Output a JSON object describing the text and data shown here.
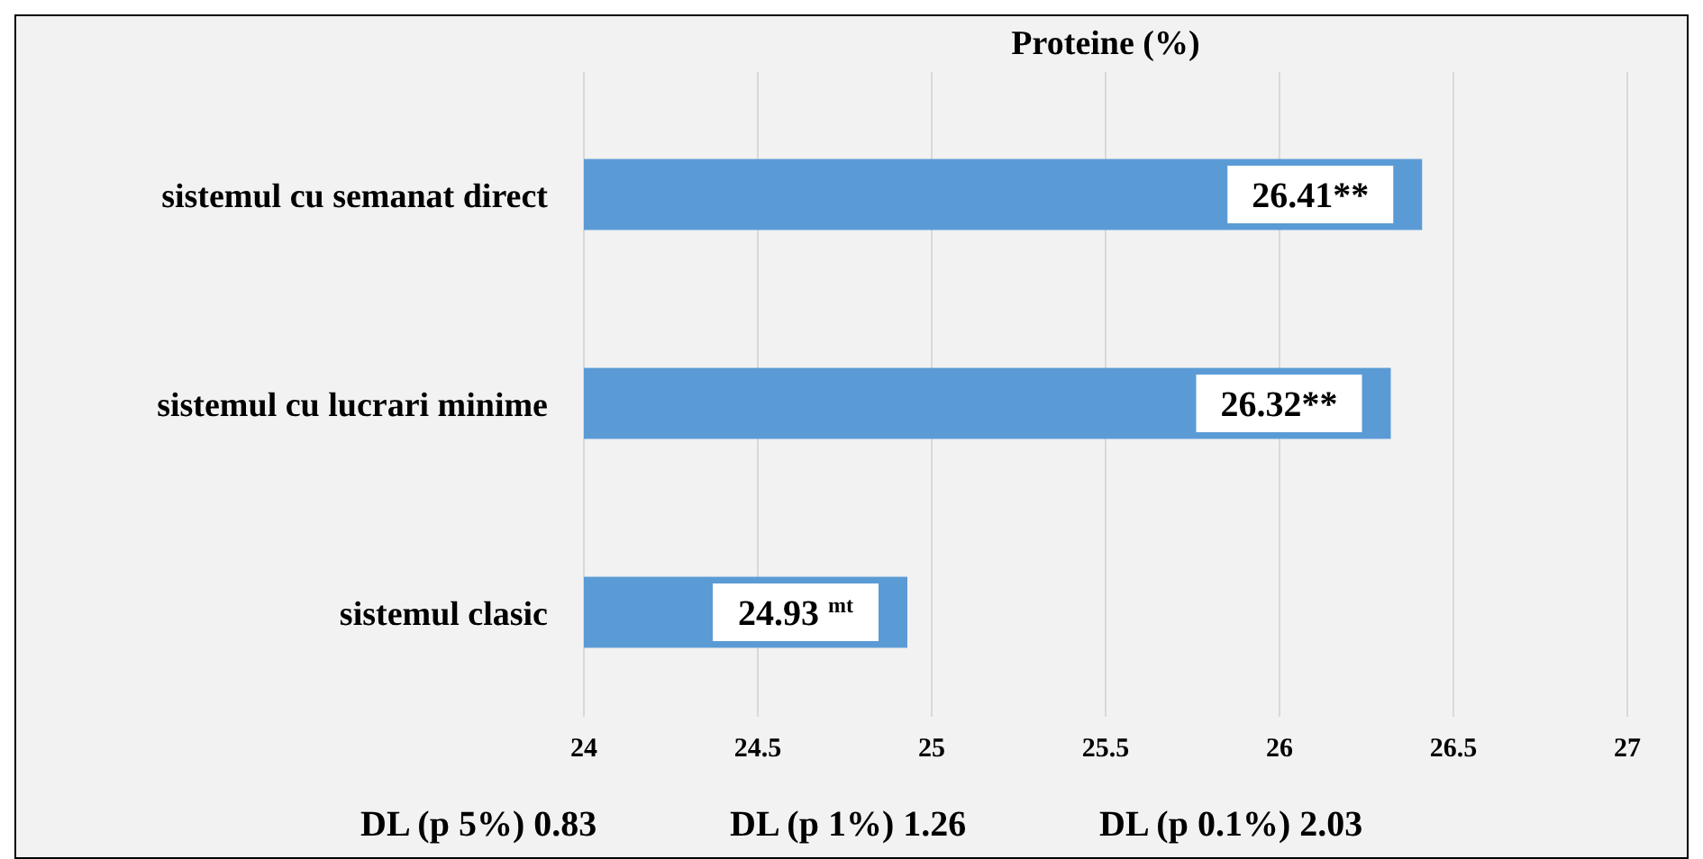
{
  "chart_data": {
    "type": "bar",
    "orientation": "horizontal",
    "title": "Proteine (%)",
    "categories": [
      "sistemul cu semanat direct",
      "sistemul cu lucrari minime",
      "sistemul clasic"
    ],
    "values": [
      26.41,
      26.32,
      24.93
    ],
    "value_labels": [
      "26.41**",
      "26.32**",
      "24.93 $^{mt}$"
    ],
    "color": "#5b9bd5",
    "xlim": [
      24,
      27
    ],
    "xticks": [
      24,
      24.5,
      25,
      25.5,
      26,
      26.5,
      27
    ],
    "grid": "x",
    "annotations": [
      "DL (p 5%) 0.83",
      "DL (p 1%) 1.26",
      "DL (p 0.1%) 2.03"
    ]
  }
}
